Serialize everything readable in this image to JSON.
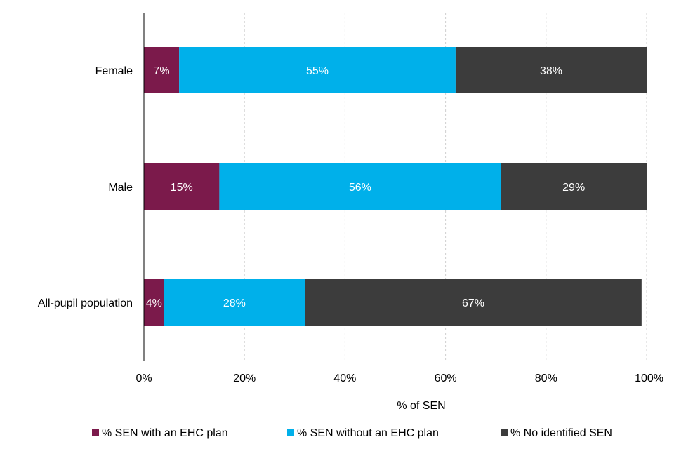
{
  "chart_data": {
    "type": "bar",
    "orientation": "horizontal",
    "stacked": true,
    "categories": [
      "Female",
      "Male",
      "All-pupil population"
    ],
    "series": [
      {
        "name": "% SEN with an EHC plan",
        "color": "#7b1a4b",
        "values": [
          7,
          15,
          4
        ],
        "labels": [
          "7%",
          "15%",
          "4%"
        ]
      },
      {
        "name": "% SEN without an EHC plan",
        "color": "#00b0ea",
        "values": [
          55,
          56,
          28
        ],
        "labels": [
          "55%",
          "56%",
          "28%"
        ]
      },
      {
        "name": "% No identified SEN",
        "color": "#3c3c3c",
        "values": [
          38,
          29,
          67
        ],
        "labels": [
          "38%",
          "29%",
          "67%"
        ]
      }
    ],
    "xlim": [
      0,
      100
    ],
    "x_ticks": [
      0,
      20,
      40,
      60,
      80,
      100
    ],
    "x_tick_labels": [
      "0%",
      "20%",
      "40%",
      "60%",
      "80%",
      "100%"
    ],
    "xlabel": "% of SEN",
    "ylabel": "",
    "title": "",
    "grid": true,
    "legend_position": "bottom"
  }
}
